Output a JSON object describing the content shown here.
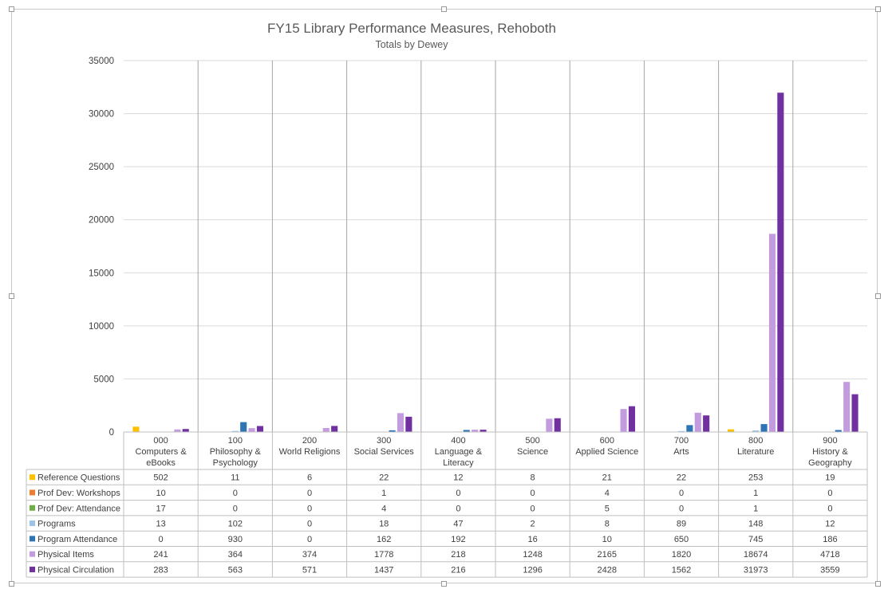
{
  "chart_data": {
    "type": "bar",
    "title": "FY15 Library Performance Measures, Rehoboth",
    "subtitle": "Totals by Dewey",
    "ylim": [
      0,
      35000
    ],
    "yticks": [
      0,
      5000,
      10000,
      15000,
      20000,
      25000,
      30000,
      35000
    ],
    "categories": [
      [
        "000",
        "Computers &",
        "eBooks"
      ],
      [
        "100",
        "Philosophy &",
        "Psychology"
      ],
      [
        "200",
        "World Religions"
      ],
      [
        "300",
        "Social Services"
      ],
      [
        "400",
        "Language &",
        "Literacy"
      ],
      [
        "500",
        "Science"
      ],
      [
        "600",
        "Applied Science"
      ],
      [
        "700",
        "Arts"
      ],
      [
        "800",
        "Literature"
      ],
      [
        "900",
        "History &",
        "Geography"
      ]
    ],
    "series": [
      {
        "name": "Reference Questions",
        "color": "#FFC000",
        "values": [
          502,
          11,
          6,
          22,
          12,
          8,
          21,
          22,
          253,
          19
        ]
      },
      {
        "name": "Prof Dev: Workshops",
        "color": "#ED7D31",
        "values": [
          10,
          0,
          0,
          1,
          0,
          0,
          4,
          0,
          1,
          0
        ]
      },
      {
        "name": "Prof Dev: Attendance",
        "color": "#70AD47",
        "values": [
          17,
          0,
          0,
          4,
          0,
          0,
          5,
          0,
          1,
          0
        ]
      },
      {
        "name": "Programs",
        "color": "#9DC3E6",
        "values": [
          13,
          102,
          0,
          18,
          47,
          2,
          8,
          89,
          148,
          12
        ]
      },
      {
        "name": "Program Attendance",
        "color": "#2E75B6",
        "values": [
          0,
          930,
          0,
          162,
          192,
          16,
          10,
          650,
          745,
          186
        ]
      },
      {
        "name": "Physical Items",
        "color": "#C39BDF",
        "values": [
          241,
          364,
          374,
          1778,
          218,
          1248,
          2165,
          1820,
          18674,
          4718
        ]
      },
      {
        "name": "Physical Circulation",
        "color": "#7030A0",
        "values": [
          283,
          563,
          571,
          1437,
          216,
          1296,
          2428,
          1562,
          31973,
          3559
        ]
      }
    ],
    "legend": "data-table",
    "grid": true
  }
}
